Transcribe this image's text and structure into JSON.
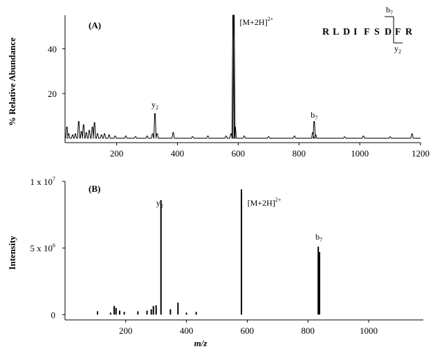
{
  "chart_data": [
    {
      "type": "line",
      "panel_label": "(A)",
      "ylabel": "% Relative Abundance",
      "xlabel": "",
      "xlim": [
        30,
        1200
      ],
      "ylim": [
        -2,
        55
      ],
      "x_ticks": [
        200,
        400,
        600,
        800,
        1000,
        1200
      ],
      "y_ticks": [
        20,
        40
      ],
      "peaks": [
        {
          "x": 36,
          "y": 5
        },
        {
          "x": 42,
          "y": 2
        },
        {
          "x": 55,
          "y": 1.5
        },
        {
          "x": 64,
          "y": 2
        },
        {
          "x": 75,
          "y": 7.5
        },
        {
          "x": 84,
          "y": 3
        },
        {
          "x": 91,
          "y": 6
        },
        {
          "x": 100,
          "y": 2.5
        },
        {
          "x": 110,
          "y": 3.5
        },
        {
          "x": 120,
          "y": 5
        },
        {
          "x": 127,
          "y": 7
        },
        {
          "x": 137,
          "y": 2
        },
        {
          "x": 150,
          "y": 1.5
        },
        {
          "x": 160,
          "y": 2
        },
        {
          "x": 175,
          "y": 1.5
        },
        {
          "x": 195,
          "y": 1
        },
        {
          "x": 230,
          "y": 1
        },
        {
          "x": 262,
          "y": 0.7
        },
        {
          "x": 300,
          "y": 1
        },
        {
          "x": 318,
          "y": 2
        },
        {
          "x": 326,
          "y": 11
        },
        {
          "x": 333,
          "y": 2
        },
        {
          "x": 386,
          "y": 2.5
        },
        {
          "x": 450,
          "y": 0.7
        },
        {
          "x": 500,
          "y": 1
        },
        {
          "x": 560,
          "y": 1
        },
        {
          "x": 576,
          "y": 2
        },
        {
          "x": 583,
          "y": 55
        },
        {
          "x": 586,
          "y": 55
        },
        {
          "x": 590,
          "y": 5
        },
        {
          "x": 620,
          "y": 1
        },
        {
          "x": 700,
          "y": 0.7
        },
        {
          "x": 785,
          "y": 1
        },
        {
          "x": 845,
          "y": 2.5
        },
        {
          "x": 850,
          "y": 7.5
        },
        {
          "x": 855,
          "y": 1.5
        },
        {
          "x": 950,
          "y": 0.6
        },
        {
          "x": 1012,
          "y": 1
        },
        {
          "x": 1100,
          "y": 0.6
        },
        {
          "x": 1172,
          "y": 2
        }
      ],
      "annotations": [
        {
          "x": 326,
          "text": "y",
          "sub": "2",
          "sup": ""
        },
        {
          "x": 585,
          "text": "[M+2H]",
          "sub": "",
          "sup": "2+"
        },
        {
          "x": 850,
          "text": "b",
          "sub": "7",
          "sup": ""
        }
      ],
      "sequence": {
        "residues": [
          "R",
          "L",
          "D",
          "I",
          "F",
          "S",
          "D",
          "F",
          "R"
        ],
        "b_ion": "b",
        "b_sub": "7",
        "y_ion": "y",
        "y_sub": "2"
      }
    },
    {
      "type": "bar",
      "panel_label": "(B)",
      "ylabel": "Intensity",
      "xlabel": "m/z",
      "xlim": [
        0,
        1180
      ],
      "ylim": [
        -400000,
        10000000
      ],
      "x_ticks": [
        200,
        400,
        600,
        800,
        1000
      ],
      "y_ticks": [
        {
          "value": 0,
          "base": "0",
          "exp": ""
        },
        {
          "value": 5000000,
          "base": "5 x 10",
          "exp": "6"
        },
        {
          "value": 10000000,
          "base": "1 x 10",
          "exp": "7"
        }
      ],
      "peaks": [
        {
          "x": 107,
          "y": 250000
        },
        {
          "x": 150,
          "y": 150000
        },
        {
          "x": 162,
          "y": 650000
        },
        {
          "x": 168,
          "y": 500000
        },
        {
          "x": 180,
          "y": 300000
        },
        {
          "x": 195,
          "y": 200000
        },
        {
          "x": 240,
          "y": 250000
        },
        {
          "x": 270,
          "y": 300000
        },
        {
          "x": 284,
          "y": 400000
        },
        {
          "x": 291,
          "y": 650000
        },
        {
          "x": 300,
          "y": 700000
        },
        {
          "x": 316,
          "y": 8600000
        },
        {
          "x": 347,
          "y": 400000
        },
        {
          "x": 372,
          "y": 900000
        },
        {
          "x": 400,
          "y": 150000
        },
        {
          "x": 432,
          "y": 200000
        },
        {
          "x": 581,
          "y": 9400000
        },
        {
          "x": 834,
          "y": 5100000
        },
        {
          "x": 838,
          "y": 4700000
        }
      ],
      "annotations": [
        {
          "x": 316,
          "text": "y",
          "sub": "2",
          "sup": ""
        },
        {
          "x": 581,
          "text": "[M+2H]",
          "sub": "",
          "sup": "2+"
        },
        {
          "x": 836,
          "text": "b",
          "sub": "7",
          "sup": ""
        }
      ]
    }
  ]
}
